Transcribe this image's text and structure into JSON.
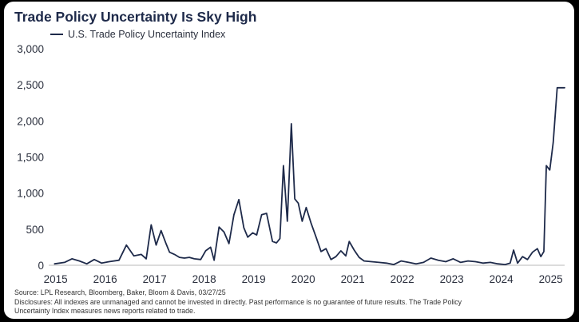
{
  "chart_data": {
    "type": "line",
    "title": "Trade Policy Uncertainty Is Sky High",
    "series": [
      {
        "name": "U.S. Trade Policy Uncertainty Index",
        "color": "#1e2a4a",
        "x": [
          2015.0,
          2015.2,
          2015.35,
          2015.5,
          2015.65,
          2015.8,
          2015.95,
          2016.1,
          2016.3,
          2016.45,
          2016.6,
          2016.75,
          2016.85,
          2016.95,
          2017.05,
          2017.15,
          2017.25,
          2017.32,
          2017.42,
          2017.52,
          2017.62,
          2017.72,
          2017.82,
          2017.95,
          2018.05,
          2018.15,
          2018.22,
          2018.32,
          2018.42,
          2018.52,
          2018.62,
          2018.72,
          2018.82,
          2018.9,
          2019.0,
          2019.08,
          2019.18,
          2019.28,
          2019.4,
          2019.48,
          2019.55,
          2019.62,
          2019.7,
          2019.78,
          2019.85,
          2019.92,
          2020.0,
          2020.08,
          2020.18,
          2020.28,
          2020.38,
          2020.48,
          2020.58,
          2020.68,
          2020.78,
          2020.88,
          2020.95,
          2021.05,
          2021.15,
          2021.25,
          2021.4,
          2021.55,
          2021.7,
          2021.85,
          2022.0,
          2022.15,
          2022.3,
          2022.45,
          2022.6,
          2022.75,
          2022.9,
          2023.05,
          2023.2,
          2023.35,
          2023.5,
          2023.65,
          2023.8,
          2023.95,
          2024.1,
          2024.2,
          2024.27,
          2024.35,
          2024.45,
          2024.55,
          2024.65,
          2024.75,
          2024.82,
          2024.88,
          2024.93,
          2025.0,
          2025.07,
          2025.15,
          2025.23,
          2025.3
        ],
        "values": [
          20,
          40,
          90,
          60,
          20,
          80,
          30,
          50,
          70,
          280,
          130,
          150,
          90,
          560,
          280,
          480,
          300,
          180,
          150,
          110,
          100,
          110,
          90,
          80,
          200,
          250,
          70,
          530,
          460,
          300,
          700,
          910,
          520,
          390,
          450,
          420,
          700,
          720,
          330,
          310,
          370,
          1380,
          610,
          1960,
          920,
          860,
          610,
          800,
          580,
          390,
          190,
          230,
          80,
          120,
          200,
          130,
          330,
          210,
          110,
          60,
          50,
          40,
          30,
          10,
          60,
          40,
          20,
          40,
          100,
          70,
          50,
          90,
          40,
          60,
          50,
          30,
          40,
          20,
          10,
          30,
          210,
          30,
          120,
          80,
          180,
          230,
          120,
          190,
          1380,
          1320,
          1700,
          2460,
          2460,
          2460
        ]
      }
    ],
    "xlim": [
      2014.88,
      2025.3
    ],
    "ylim": [
      0,
      3000
    ],
    "x_ticks": [
      "2015",
      "2016",
      "2017",
      "2018",
      "2019",
      "2020",
      "2021",
      "2022",
      "2023",
      "2024",
      "2025"
    ],
    "y_ticks": [
      "0",
      "500",
      "1,000",
      "1,500",
      "2,000",
      "2,500",
      "3,000"
    ],
    "grid": false,
    "legend_position": "top-left"
  },
  "footer": {
    "source": "Source: LPL Research, Bloomberg, Baker, Bloom & Davis, 03/27/25",
    "disclosure_line1": "Disclosures: All indexes are unmanaged and cannot be invested in directly. Past performance is no guarantee of future results. The Trade Policy",
    "disclosure_line2": "Uncertainty Index measures news reports related to trade."
  }
}
